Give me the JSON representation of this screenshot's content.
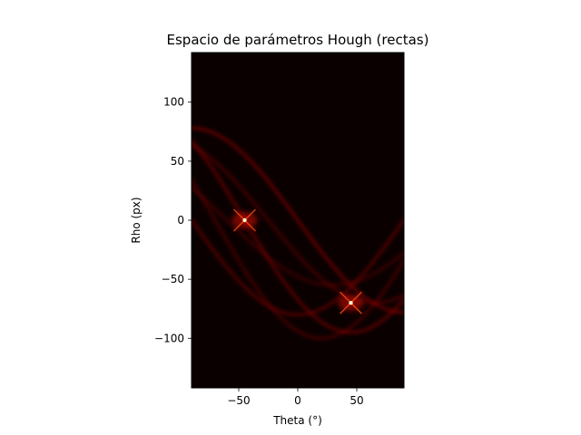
{
  "chart_data": {
    "type": "heatmap",
    "title": "Espacio de parámetros Hough (rectas)",
    "xlabel": "Theta (°)",
    "ylabel": "Rho (px)",
    "xlim": [
      -90,
      90
    ],
    "ylim": [
      -142,
      142
    ],
    "x_ticks": [
      -50,
      0,
      50
    ],
    "x_tick_labels": [
      "−50",
      "0",
      "50"
    ],
    "y_ticks": [
      100,
      50,
      0,
      -50,
      -100
    ],
    "y_tick_labels": [
      "100",
      "50",
      "0",
      "−50",
      "−100"
    ],
    "colormap": "hot",
    "background_color": "#0b0000",
    "grid": false,
    "peaks": [
      {
        "theta": -45,
        "rho": 0
      },
      {
        "theta": 45,
        "rho": -70
      }
    ],
    "sinusoids": [
      {
        "amplitude": 78,
        "phase": -90,
        "weight": 0.5
      },
      {
        "amplitude": 95,
        "phase": -135,
        "weight": 0.45
      },
      {
        "amplitude": 80,
        "phase": -180,
        "weight": 0.4
      },
      {
        "amplitude": 100,
        "phase": -160,
        "weight": 0.3
      },
      {
        "amplitude": 70,
        "phase": -115,
        "weight": 0.3
      },
      {
        "amplitude": 55,
        "phase": -150,
        "weight": 0.25
      }
    ]
  }
}
